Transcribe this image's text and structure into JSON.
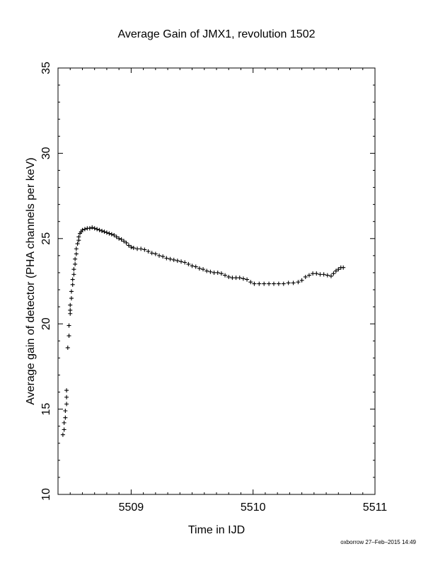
{
  "chart_data": {
    "type": "scatter",
    "title": "Average Gain of JMX1, revolution 1502",
    "xlabel": "Time in IJD",
    "ylabel": "Average gain of detector (PHA channels per keV)",
    "xlim": [
      5508.4,
      5511
    ],
    "ylim": [
      10,
      35
    ],
    "xticks": [
      5509,
      5510,
      5511
    ],
    "yticks": [
      10,
      15,
      20,
      25,
      30,
      35
    ],
    "marker": "+",
    "grid": false,
    "legend": "none",
    "series": [
      {
        "points": [
          [
            5508.44,
            13.5
          ],
          [
            5508.45,
            13.8
          ],
          [
            5508.45,
            14.2
          ],
          [
            5508.46,
            14.5
          ],
          [
            5508.46,
            14.9
          ],
          [
            5508.47,
            15.3
          ],
          [
            5508.47,
            15.7
          ],
          [
            5508.47,
            16.1
          ],
          [
            5508.48,
            18.6
          ],
          [
            5508.49,
            19.3
          ],
          [
            5508.49,
            19.9
          ],
          [
            5508.5,
            20.6
          ],
          [
            5508.5,
            20.8
          ],
          [
            5508.5,
            21.1
          ],
          [
            5508.51,
            21.5
          ],
          [
            5508.51,
            21.9
          ],
          [
            5508.52,
            22.3
          ],
          [
            5508.52,
            22.6
          ],
          [
            5508.53,
            22.9
          ],
          [
            5508.53,
            23.2
          ],
          [
            5508.54,
            23.5
          ],
          [
            5508.54,
            23.8
          ],
          [
            5508.55,
            24.1
          ],
          [
            5508.55,
            24.4
          ],
          [
            5508.56,
            24.7
          ],
          [
            5508.57,
            24.9
          ],
          [
            5508.57,
            25.1
          ],
          [
            5508.58,
            25.3
          ],
          [
            5508.59,
            25.4
          ],
          [
            5508.6,
            25.5
          ],
          [
            5508.62,
            25.55
          ],
          [
            5508.64,
            25.6
          ],
          [
            5508.66,
            25.6
          ],
          [
            5508.68,
            25.65
          ],
          [
            5508.7,
            25.6
          ],
          [
            5508.72,
            25.55
          ],
          [
            5508.74,
            25.5
          ],
          [
            5508.76,
            25.45
          ],
          [
            5508.78,
            25.4
          ],
          [
            5508.8,
            25.35
          ],
          [
            5508.82,
            25.3
          ],
          [
            5508.84,
            25.25
          ],
          [
            5508.86,
            25.2
          ],
          [
            5508.88,
            25.1
          ],
          [
            5508.9,
            25.0
          ],
          [
            5508.92,
            24.95
          ],
          [
            5508.94,
            24.85
          ],
          [
            5508.96,
            24.75
          ],
          [
            5508.98,
            24.6
          ],
          [
            5509.0,
            24.5
          ],
          [
            5509.02,
            24.45
          ],
          [
            5509.05,
            24.4
          ],
          [
            5509.08,
            24.4
          ],
          [
            5509.11,
            24.35
          ],
          [
            5509.14,
            24.25
          ],
          [
            5509.17,
            24.15
          ],
          [
            5509.2,
            24.1
          ],
          [
            5509.23,
            24.0
          ],
          [
            5509.26,
            23.95
          ],
          [
            5509.29,
            23.85
          ],
          [
            5509.32,
            23.8
          ],
          [
            5509.35,
            23.75
          ],
          [
            5509.38,
            23.7
          ],
          [
            5509.41,
            23.65
          ],
          [
            5509.44,
            23.6
          ],
          [
            5509.47,
            23.5
          ],
          [
            5509.5,
            23.4
          ],
          [
            5509.53,
            23.35
          ],
          [
            5509.56,
            23.25
          ],
          [
            5509.59,
            23.2
          ],
          [
            5509.62,
            23.1
          ],
          [
            5509.65,
            23.05
          ],
          [
            5509.68,
            23.0
          ],
          [
            5509.71,
            23.0
          ],
          [
            5509.74,
            22.95
          ],
          [
            5509.77,
            22.85
          ],
          [
            5509.8,
            22.75
          ],
          [
            5509.83,
            22.7
          ],
          [
            5509.86,
            22.7
          ],
          [
            5509.89,
            22.7
          ],
          [
            5509.92,
            22.65
          ],
          [
            5509.95,
            22.6
          ],
          [
            5509.98,
            22.45
          ],
          [
            5510.01,
            22.35
          ],
          [
            5510.05,
            22.35
          ],
          [
            5510.09,
            22.35
          ],
          [
            5510.13,
            22.35
          ],
          [
            5510.17,
            22.35
          ],
          [
            5510.21,
            22.35
          ],
          [
            5510.25,
            22.35
          ],
          [
            5510.29,
            22.4
          ],
          [
            5510.33,
            22.4
          ],
          [
            5510.37,
            22.45
          ],
          [
            5510.4,
            22.55
          ],
          [
            5510.43,
            22.75
          ],
          [
            5510.46,
            22.85
          ],
          [
            5510.49,
            22.95
          ],
          [
            5510.52,
            22.95
          ],
          [
            5510.55,
            22.9
          ],
          [
            5510.58,
            22.9
          ],
          [
            5510.61,
            22.85
          ],
          [
            5510.64,
            22.8
          ],
          [
            5510.66,
            22.95
          ],
          [
            5510.68,
            23.1
          ],
          [
            5510.7,
            23.2
          ],
          [
            5510.72,
            23.3
          ],
          [
            5510.74,
            23.3
          ]
        ]
      }
    ]
  },
  "footer": {
    "stamp": "oxborrow 27–Feb–2015 14:49"
  }
}
